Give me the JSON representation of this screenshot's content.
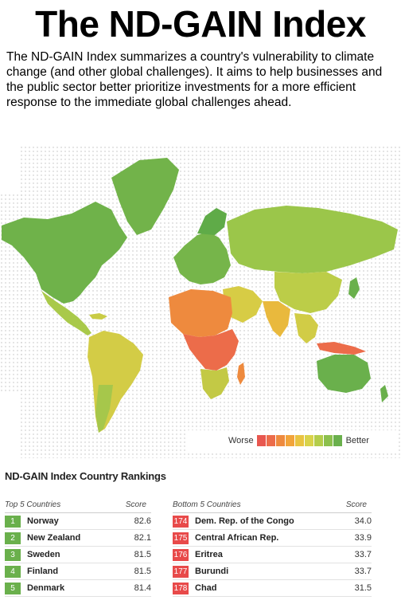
{
  "title": "The ND-GAIN Index",
  "intro": "The ND-GAIN Index summarizes a country's vulnerability to climate change (and other global challenges). It aims to help businesses and the public sector better prioritize investments for a more efficient response to the immediate global challenges ahead.",
  "legend": {
    "worse": "Worse",
    "better": "Better",
    "colors": [
      "#e8574f",
      "#ec6c4a",
      "#ee8a3e",
      "#f2a43a",
      "#e9c441",
      "#d9d34a",
      "#b4cd4a",
      "#8cc04d",
      "#6ab04c"
    ]
  },
  "rankings": {
    "title": "ND-GAIN Index Country Rankings",
    "top": {
      "header": "Top 5 Countries",
      "score_header": "Score",
      "rows": [
        {
          "rank": "1",
          "country": "Norway",
          "score": "82.6"
        },
        {
          "rank": "2",
          "country": "New Zealand",
          "score": "82.1"
        },
        {
          "rank": "3",
          "country": "Sweden",
          "score": "81.5"
        },
        {
          "rank": "4",
          "country": "Finland",
          "score": "81.5"
        },
        {
          "rank": "5",
          "country": "Denmark",
          "score": "81.4"
        }
      ]
    },
    "bottom": {
      "header": "Bottom 5 Countries",
      "score_header": "Score",
      "rows": [
        {
          "rank": "174",
          "country": "Dem. Rep. of the Congo",
          "score": "34.0"
        },
        {
          "rank": "175",
          "country": "Central African Rep.",
          "score": "33.9"
        },
        {
          "rank": "176",
          "country": "Eritrea",
          "score": "33.7"
        },
        {
          "rank": "177",
          "country": "Burundi",
          "score": "33.7"
        },
        {
          "rank": "178",
          "country": "Chad",
          "score": "31.5"
        }
      ]
    }
  }
}
